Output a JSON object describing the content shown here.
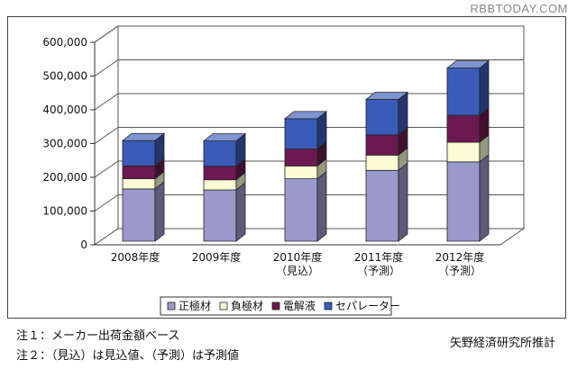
{
  "watermark": "RBBTODAY.COM",
  "notes": {
    "note1": "注１：メーカー出荷金額ベース",
    "note2": "注２：（見込）は見込値、（予測）は予測値"
  },
  "source": "矢野経済研究所推計",
  "chart_data": {
    "type": "bar",
    "stacked": true,
    "style": "3d",
    "categories": [
      [
        "2008年度"
      ],
      [
        "2009年度"
      ],
      [
        "2010年度",
        "（見込）"
      ],
      [
        "2011年度",
        "（予測）"
      ],
      [
        "2012年度",
        "（予測）"
      ]
    ],
    "y_ticks": [
      "0",
      "100,000",
      "200,000",
      "300,000",
      "400,000",
      "500,000",
      "600,000"
    ],
    "ylim": [
      0,
      600000
    ],
    "grid": true,
    "legend_position": "bottom",
    "series": [
      {
        "name": "正極材",
        "color": "#9a99cc",
        "values": [
          155000,
          152000,
          185000,
          210000,
          235000
        ]
      },
      {
        "name": "負極材",
        "color": "#fbfbd6",
        "values": [
          30000,
          30000,
          38000,
          45000,
          58000
        ]
      },
      {
        "name": "電解液",
        "color": "#6a1a50",
        "values": [
          38000,
          40000,
          50000,
          60000,
          80000
        ]
      },
      {
        "name": "セパレーター",
        "color": "#3a5bb8",
        "values": [
          75000,
          75000,
          90000,
          105000,
          140000
        ]
      }
    ]
  }
}
